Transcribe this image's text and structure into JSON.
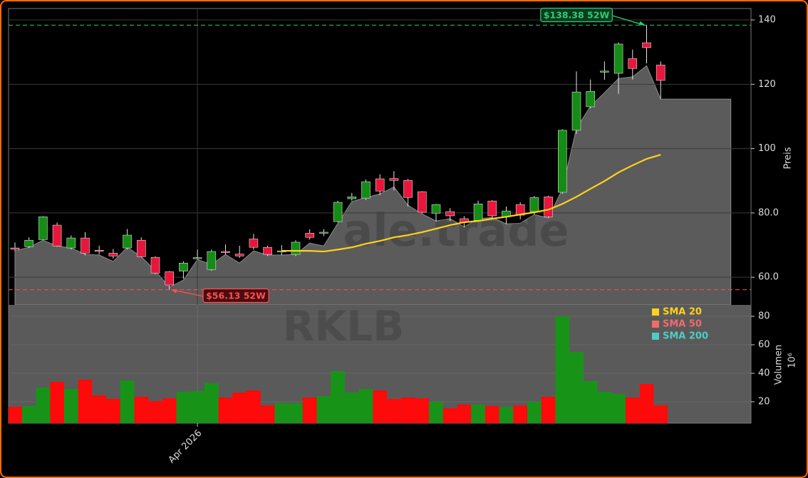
{
  "chart_data": {
    "type": "candlestick",
    "categories": [
      null,
      null,
      null,
      null,
      null,
      null,
      null,
      null,
      null,
      null,
      null,
      null,
      null,
      "Apr 2026",
      null,
      null,
      null,
      null,
      null,
      null,
      null,
      null,
      null,
      null,
      null,
      null,
      null,
      null,
      null,
      null,
      null,
      null,
      null,
      null,
      null,
      null,
      null,
      null,
      null,
      null,
      null,
      null,
      null,
      null,
      null,
      null,
      null,
      null,
      null,
      null,
      null,
      null
    ],
    "watermarks": [
      "ale.trade",
      "RKLB"
    ],
    "price": {
      "ylabel": "Preis",
      "ylim": [
        51.4,
        143.55
      ],
      "yticks": [
        {
          "value": 60,
          "label": "60.0"
        },
        {
          "value": 80,
          "label": "80.0"
        },
        100,
        120,
        140
      ],
      "grid": true,
      "up_color": "#158c15",
      "down_color": "#e8163c",
      "open": [
        69.1,
        69.5,
        71.7,
        76.2,
        69.1,
        72.2,
        68.4,
        67.5,
        69.1,
        71.5,
        66.2,
        61.7,
        61.9,
        66.0,
        62.4,
        68.0,
        67.2,
        71.9,
        69.3,
        68.1,
        67.1,
        73.7,
        73.8,
        77.3,
        84.4,
        84.6,
        90.6,
        90.7,
        90.1,
        86.6,
        79.9,
        80.4,
        78.2,
        77.7,
        83.7,
        78.8,
        82.6,
        80.4,
        85.0,
        86.4,
        105.7,
        113.0,
        124.0,
        123.4,
        128.0,
        132.9,
        126.0,
        null,
        null,
        null,
        null,
        null
      ],
      "high": [
        70.8,
        72.4,
        79.0,
        77.0,
        73.0,
        74.0,
        69.8,
        68.8,
        75.0,
        72.4,
        66.5,
        61.9,
        65.0,
        68.6,
        68.6,
        70.2,
        69.8,
        73.5,
        69.8,
        70.0,
        71.5,
        74.9,
        75.0,
        83.8,
        86.2,
        90.4,
        92.0,
        93.0,
        90.6,
        86.8,
        82.8,
        81.5,
        79.0,
        83.8,
        84.0,
        82.0,
        83.3,
        85.3,
        85.3,
        106.0,
        124.0,
        121.5,
        127.1,
        133.0,
        130.8,
        138.38,
        127.1,
        null,
        null,
        null,
        null,
        null
      ],
      "low": [
        68.2,
        69.1,
        71.5,
        69.5,
        68.6,
        66.8,
        67.1,
        65.8,
        68.6,
        66.2,
        61.0,
        56.13,
        59.5,
        65.5,
        62.0,
        67.1,
        66.0,
        68.6,
        66.6,
        66.9,
        66.6,
        71.7,
        72.8,
        77.1,
        83.8,
        84.0,
        85.5,
        87.0,
        82.0,
        79.9,
        77.3,
        77.5,
        75.5,
        77.3,
        78.6,
        76.5,
        78.0,
        79.5,
        78.4,
        85.9,
        104.6,
        112.5,
        121.4,
        117.0,
        121.5,
        126.5,
        115.5,
        null,
        null,
        null,
        null,
        null
      ],
      "close": [
        68.7,
        71.5,
        78.8,
        69.7,
        72.2,
        67.5,
        68.2,
        66.6,
        73.1,
        66.4,
        61.3,
        57.6,
        64.4,
        66.1,
        68.0,
        67.9,
        66.6,
        69.3,
        67.1,
        68.2,
        70.9,
        72.4,
        74.0,
        83.3,
        85.0,
        89.7,
        86.8,
        90.1,
        84.8,
        80.2,
        82.6,
        79.1,
        77.1,
        82.8,
        79.1,
        80.6,
        79.3,
        84.8,
        78.8,
        105.7,
        117.6,
        117.8,
        124.1,
        132.5,
        124.9,
        131.4,
        121.2,
        null,
        null,
        null,
        null,
        null
      ],
      "area": {
        "color": "#5b5b5b",
        "values": [
          68.2,
          69.3,
          71.5,
          69.7,
          69.1,
          67.1,
          66.9,
          64.9,
          69.3,
          66.4,
          62.0,
          56.9,
          59.1,
          65.5,
          64.0,
          67.1,
          64.4,
          68.2,
          66.9,
          66.9,
          67.1,
          70.6,
          69.7,
          76.8,
          83.5,
          84.8,
          85.9,
          88.1,
          82.4,
          79.7,
          77.5,
          78.2,
          75.7,
          78.2,
          78.6,
          76.6,
          76.8,
          79.5,
          78.4,
          87.5,
          106.3,
          113.2,
          117.4,
          121.8,
          122.3,
          125.8,
          115.4,
          115.4,
          115.4,
          115.4,
          115.4,
          115.4
        ]
      },
      "series": [
        {
          "name": "SMA 20",
          "color": "#ffd21a",
          "values": [
            null,
            null,
            null,
            null,
            null,
            null,
            null,
            null,
            null,
            null,
            null,
            null,
            null,
            null,
            null,
            null,
            null,
            null,
            null,
            68.2,
            68.2,
            68.2,
            68.0,
            68.6,
            69.3,
            70.4,
            71.3,
            72.4,
            73.1,
            74.0,
            75.1,
            76.2,
            77.1,
            77.5,
            78.2,
            78.8,
            79.5,
            80.2,
            81.0,
            82.8,
            85.0,
            87.5,
            89.9,
            92.6,
            94.8,
            96.8,
            98.1,
            null,
            null,
            null,
            null,
            null
          ]
        },
        {
          "name": "SMA 50",
          "color": "#f26b6b",
          "values": [
            null,
            null,
            null,
            null,
            null,
            null,
            null,
            null,
            null,
            null,
            null,
            null,
            null,
            null,
            null,
            null,
            null,
            null,
            null,
            null,
            null,
            null,
            null,
            null,
            null,
            null,
            null,
            null,
            null,
            null,
            null,
            null,
            null,
            null,
            null,
            null,
            null,
            null,
            null,
            null,
            null,
            null,
            null,
            null,
            null,
            null,
            null,
            null,
            null,
            null,
            null,
            null
          ]
        },
        {
          "name": "SMA 200",
          "color": "#4ecdc4",
          "values": [
            null,
            null,
            null,
            null,
            null,
            null,
            null,
            null,
            null,
            null,
            null,
            null,
            null,
            null,
            null,
            null,
            null,
            null,
            null,
            null,
            null,
            null,
            null,
            null,
            null,
            null,
            null,
            null,
            null,
            null,
            null,
            null,
            null,
            null,
            null,
            null,
            null,
            null,
            null,
            null,
            null,
            null,
            null,
            null,
            null,
            null,
            null,
            null,
            null,
            null,
            null,
            null
          ]
        }
      ],
      "annotations": [
        {
          "text": "$138.38 52W",
          "value": 138.38,
          "color": "#2ecc71",
          "background": "#0d3b20"
        },
        {
          "text": "$56.13 52W",
          "value": 56.13,
          "color": "#ff5050",
          "background": "#4a0c10"
        }
      ]
    },
    "volume": {
      "ylabel": "Volumen",
      "unit": "10⁶",
      "ylim": [
        5,
        88
      ],
      "yticks": [
        20,
        40,
        60,
        80
      ],
      "up_color": "#179417",
      "down_color": "#ff0a0a",
      "values": [
        16.5,
        17,
        30,
        34,
        29,
        35.5,
        24.5,
        22,
        35,
        23.5,
        20.5,
        22.5,
        27,
        27.5,
        33,
        23,
        26.5,
        28,
        17.5,
        19,
        19,
        23,
        24,
        41.5,
        26.5,
        29,
        28,
        22,
        23,
        22.5,
        20,
        15.5,
        18,
        18,
        17,
        16.5,
        17.5,
        20,
        23.5,
        80,
        55,
        34.5,
        27,
        25.5,
        23,
        32.5,
        17.5,
        null,
        null,
        null,
        null,
        null
      ]
    }
  }
}
